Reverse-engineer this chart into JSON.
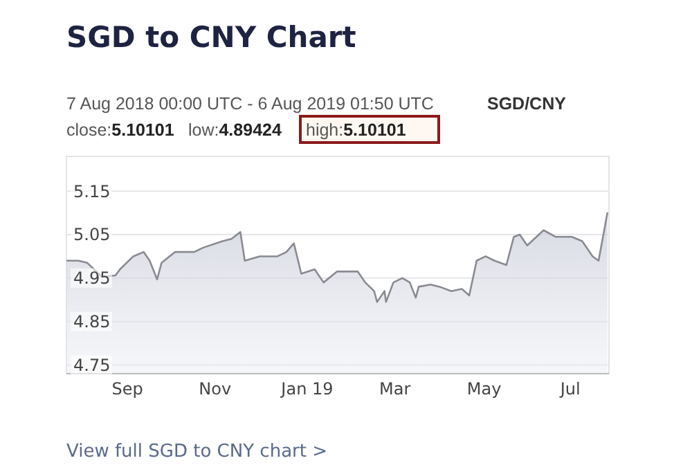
{
  "chart_data": {
    "type": "area",
    "title": "SGD to CNY Chart",
    "subtitle": "7 Aug 2018 00:00 UTC - 6 Aug 2019 01:50 UTC",
    "annotations": [
      "SGD/CNY",
      "close:5.10101",
      "low:4.89424",
      "high:5.10101",
      "View full SGD to CNY chart >"
    ],
    "x": [
      "2018-08-07",
      "2018-08-15",
      "2018-08-21",
      "2018-08-31",
      "2018-09-09",
      "2018-09-12",
      "2018-09-21",
      "2018-09-28",
      "2018-10-02",
      "2018-10-07",
      "2018-10-10",
      "2018-10-19",
      "2018-11-01",
      "2018-11-07",
      "2018-11-20",
      "2018-11-26",
      "2018-12-02",
      "2018-12-05",
      "2018-12-15",
      "2018-12-27",
      "2019-01-02",
      "2019-01-07",
      "2019-01-12",
      "2019-01-21",
      "2019-01-27",
      "2019-02-05",
      "2019-02-12",
      "2019-02-19",
      "2019-02-24",
      "2019-03-02",
      "2019-03-04",
      "2019-03-09",
      "2019-03-10",
      "2019-03-15",
      "2019-03-21",
      "2019-03-26",
      "2019-03-30",
      "2019-04-01",
      "2019-04-09",
      "2019-04-15",
      "2019-04-23",
      "2019-04-30",
      "2019-05-05",
      "2019-05-10",
      "2019-05-16",
      "2019-05-22",
      "2019-05-30",
      "2019-06-04",
      "2019-06-08",
      "2019-06-13",
      "2019-06-24",
      "2019-07-02",
      "2019-07-13",
      "2019-07-20",
      "2019-07-27",
      "2019-07-31",
      "2019-08-06"
    ],
    "series": [
      {
        "color": "#8a8a92",
        "values": [
          4.99,
          4.99,
          4.985,
          4.953,
          4.956,
          4.97,
          5.0,
          5.01,
          4.99,
          4.947,
          4.985,
          5.01,
          5.01,
          5.02,
          5.035,
          5.04,
          5.056,
          4.99,
          5.0,
          5.0,
          5.01,
          5.03,
          4.96,
          4.97,
          4.94,
          4.965,
          4.965,
          4.965,
          4.94,
          4.92,
          4.895,
          4.92,
          4.895,
          4.94,
          4.95,
          4.94,
          4.905,
          4.93,
          4.935,
          4.93,
          4.92,
          4.925,
          4.91,
          4.99,
          5.0,
          4.99,
          4.98,
          5.045,
          5.05,
          5.025,
          5.06,
          5.045,
          5.045,
          5.035,
          5.0,
          4.99,
          5.101
        ]
      }
    ],
    "xlim": [
      "2018-08-07",
      "2019-08-07"
    ],
    "xticks": [
      {
        "value": "2018-09-17",
        "label": "Sep"
      },
      {
        "value": "2018-11-15",
        "label": "Nov"
      },
      {
        "value": "2019-01-16",
        "label": "Jan 19"
      },
      {
        "value": "2019-03-16",
        "label": "Mar"
      },
      {
        "value": "2019-05-15",
        "label": "May"
      },
      {
        "value": "2019-07-12",
        "label": "Jul"
      }
    ],
    "ylim": [
      4.73,
      5.23
    ],
    "yticks": [
      {
        "value": 4.75,
        "label": "4.75"
      },
      {
        "value": 4.85,
        "label": "4.85"
      },
      {
        "value": 4.95,
        "label": "4.95"
      },
      {
        "value": 5.05,
        "label": "5.05"
      },
      {
        "value": 5.15,
        "label": "5.15"
      }
    ],
    "grid": "y"
  }
}
